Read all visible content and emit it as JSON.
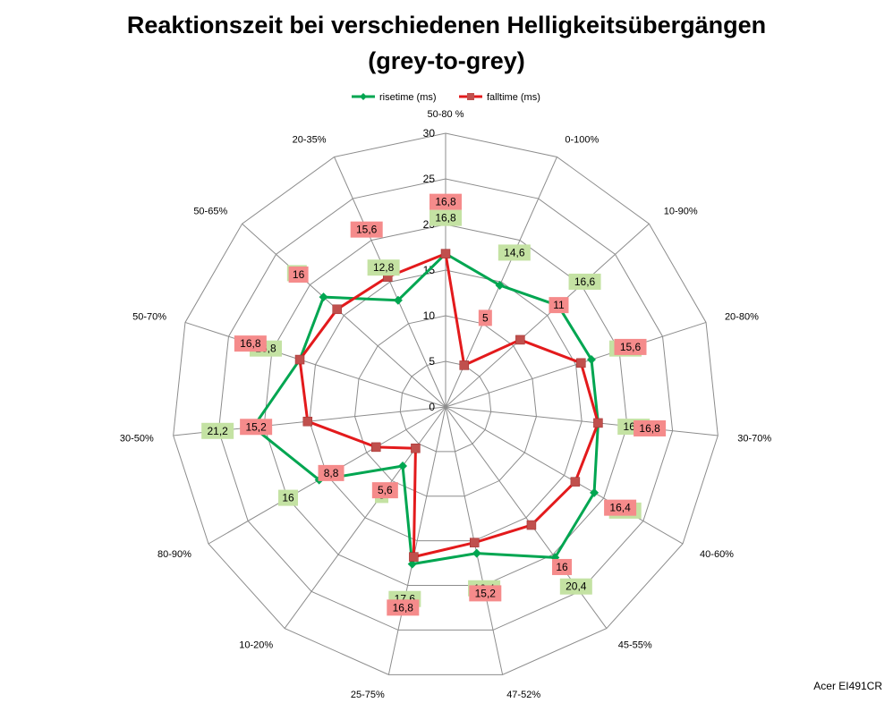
{
  "chart_data": {
    "type": "radar",
    "title": [
      "Reaktionszeit bei verschiedenen Helligkeitsübergängen",
      "(grey-to-grey)"
    ],
    "categories": [
      "50-80 %",
      "0-100%",
      "10-90%",
      "20-80%",
      "30-70%",
      "40-60%",
      "45-55%",
      "47-52%",
      "25-75%",
      "10-20%",
      "80-90%",
      "30-50%",
      "50-70%",
      "50-65%",
      "20-35%"
    ],
    "rlim": [
      0,
      30
    ],
    "ticks": [
      "0",
      "5",
      "10",
      "15",
      "20",
      "25",
      "30"
    ],
    "grid": true,
    "legend_position": "top",
    "series": [
      {
        "name": "risetime (ms)",
        "color": "#00a651",
        "values": [
          16.8,
          14.6,
          16.6,
          16.8,
          16.8,
          18.8,
          20.4,
          16.4,
          17.6,
          8,
          16,
          21.2,
          16.8,
          18,
          12.8
        ],
        "labels": [
          "16,8",
          "14,6",
          "16,6",
          "16,8",
          "16,8",
          "18,8",
          "20,4",
          "16,4",
          "17,6",
          "8",
          "16",
          "21,2",
          "16,8",
          "18",
          "12,8"
        ]
      },
      {
        "name": "falltime (ms)",
        "color": "#e31a1c",
        "values": [
          16.8,
          5,
          11,
          15.6,
          16.8,
          16.4,
          16,
          15.2,
          16.8,
          5.6,
          8.8,
          15.2,
          16.8,
          16,
          15.6
        ],
        "labels": [
          "16,8",
          "5",
          "11",
          "15,6",
          "16,8",
          "16,4",
          "16",
          "15,2",
          "16,8",
          "5,6",
          "8,8",
          "15,2",
          "16,8",
          "16",
          "15,6"
        ]
      }
    ]
  },
  "watermark": "Acer EI491CR"
}
